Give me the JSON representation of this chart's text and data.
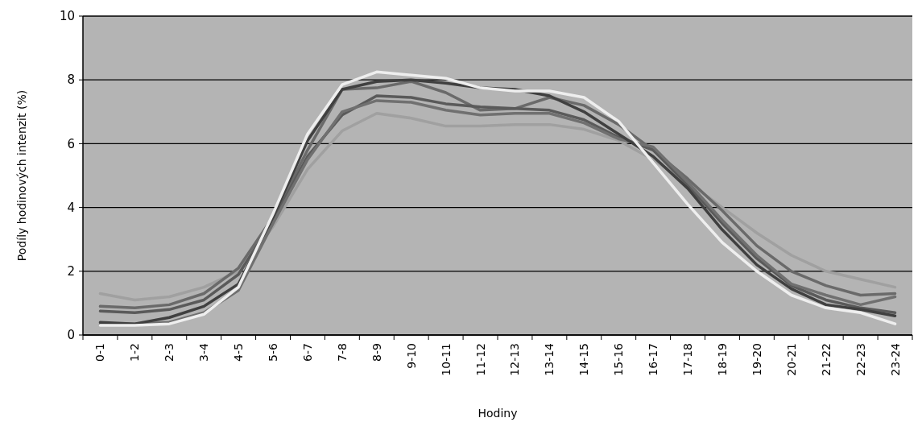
{
  "chart_data": {
    "type": "line",
    "xlabel": "Hodiny",
    "ylabel": "Podíly hodinových intenzit (%)",
    "categories": [
      "0-1",
      "1-2",
      "2-3",
      "3-4",
      "4-5",
      "5-6",
      "6-7",
      "7-8",
      "8-9",
      "9-10",
      "10-11",
      "11-12",
      "12-13",
      "13-14",
      "14-15",
      "15-16",
      "16-17",
      "17-18",
      "18-19",
      "19-20",
      "20-21",
      "21-22",
      "22-23",
      "23-24"
    ],
    "series": [
      {
        "color": "#a0a0a0",
        "values": [
          1.3,
          1.1,
          1.2,
          1.5,
          2.0,
          3.4,
          5.2,
          6.4,
          6.95,
          6.8,
          6.55,
          6.55,
          6.6,
          6.6,
          6.45,
          6.1,
          5.5,
          4.8,
          4.0,
          3.2,
          2.5,
          2.0,
          1.75,
          1.5
        ]
      },
      {
        "color": "#6a6a6a",
        "values": [
          0.9,
          0.85,
          0.95,
          1.3,
          2.1,
          3.7,
          5.8,
          7.7,
          7.75,
          7.95,
          7.6,
          7.05,
          7.1,
          7.45,
          7.2,
          6.6,
          5.8,
          4.9,
          3.9,
          2.8,
          2.0,
          1.55,
          1.25,
          1.3
        ]
      },
      {
        "color": "#5a5a5a",
        "values": [
          0.75,
          0.7,
          0.8,
          1.1,
          1.9,
          3.6,
          5.6,
          6.9,
          7.5,
          7.45,
          7.25,
          7.15,
          7.1,
          7.05,
          6.75,
          6.2,
          5.8,
          4.7,
          3.5,
          2.4,
          1.55,
          1.1,
          0.85,
          0.7
        ]
      },
      {
        "color": "#707070",
        "values": [
          0.35,
          0.35,
          0.4,
          0.7,
          1.4,
          3.5,
          5.5,
          7.0,
          7.35,
          7.3,
          7.05,
          6.9,
          6.95,
          6.95,
          6.65,
          6.15,
          5.9,
          4.8,
          3.6,
          2.5,
          1.6,
          1.25,
          0.95,
          1.2
        ]
      },
      {
        "color": "#404040",
        "values": [
          0.4,
          0.35,
          0.55,
          0.9,
          1.6,
          3.7,
          6.1,
          7.7,
          7.95,
          8.0,
          7.9,
          7.75,
          7.7,
          7.5,
          7.0,
          6.3,
          5.6,
          4.6,
          3.3,
          2.2,
          1.45,
          0.95,
          0.8,
          0.6
        ]
      },
      {
        "color": "#eeeeee",
        "values": [
          0.3,
          0.3,
          0.35,
          0.65,
          1.5,
          3.8,
          6.3,
          7.85,
          8.25,
          8.15,
          8.05,
          7.75,
          7.65,
          7.65,
          7.45,
          6.7,
          5.4,
          4.1,
          2.9,
          2.0,
          1.25,
          0.85,
          0.7,
          0.35
        ]
      }
    ],
    "ylim": [
      0,
      10
    ],
    "yticks": [
      0,
      2,
      4,
      6,
      8,
      10
    ],
    "grid": "y",
    "marker": "none",
    "line_style": "solid"
  }
}
